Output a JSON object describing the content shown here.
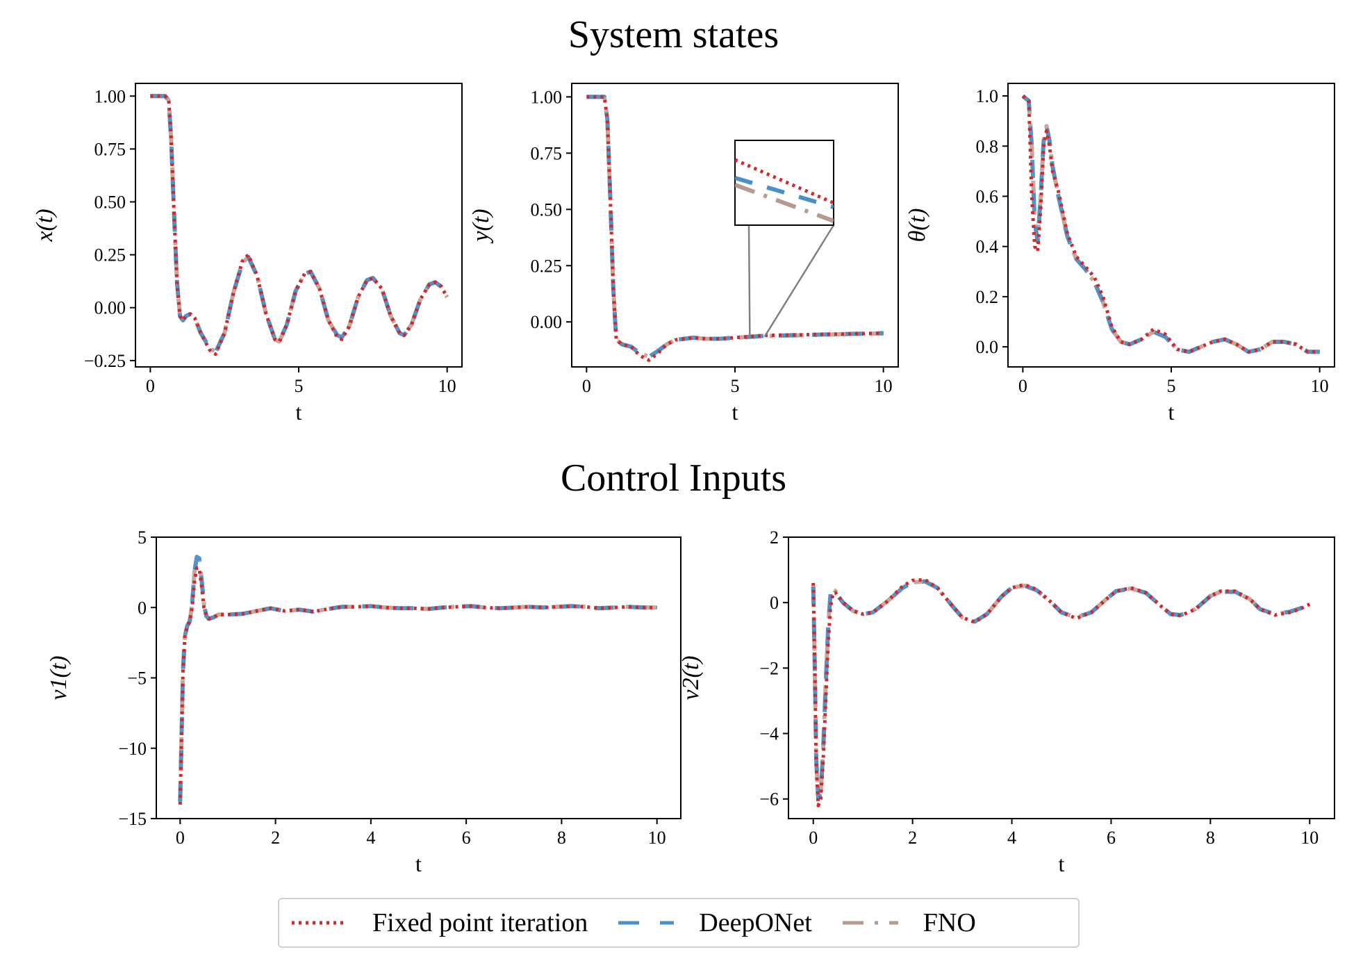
{
  "titles": {
    "top": "System states",
    "bottom": "Control Inputs"
  },
  "colors": {
    "fixed_point": "#d62728",
    "deeponet": "#4a90c8",
    "fno": "#b89890"
  },
  "legend": [
    {
      "label": "Fixed point iteration",
      "style": "dotted",
      "color": "#d62728"
    },
    {
      "label": "DeepONet",
      "style": "dashed",
      "color": "#4a90c8"
    },
    {
      "label": "FNO",
      "style": "dashdot",
      "color": "#b89890"
    }
  ],
  "chart_data": [
    {
      "type": "line",
      "id": "x",
      "xlabel": "t",
      "ylabel": "x(t)",
      "xlim": [
        -0.5,
        10.5
      ],
      "ylim": [
        -0.28,
        1.06
      ],
      "xticks": [
        0,
        5,
        10
      ],
      "yticks": [
        -0.25,
        0.0,
        0.25,
        0.5,
        0.75,
        1.0
      ],
      "yticklabels": [
        "−0.25",
        "0.00",
        "0.25",
        "0.50",
        "0.75",
        "1.00"
      ],
      "x": [
        0,
        0.5,
        0.62,
        0.7,
        0.8,
        0.9,
        1.0,
        1.1,
        1.2,
        1.35,
        1.5,
        1.7,
        2.0,
        2.2,
        2.5,
        2.8,
        3.1,
        3.3,
        3.6,
        3.9,
        4.2,
        4.35,
        4.6,
        4.9,
        5.2,
        5.4,
        5.7,
        6.0,
        6.3,
        6.45,
        6.7,
        7.0,
        7.3,
        7.5,
        7.8,
        8.1,
        8.4,
        8.55,
        8.8,
        9.1,
        9.4,
        9.6,
        9.8,
        10.0
      ],
      "series": [
        {
          "name": "Fixed point iteration",
          "values": [
            1.0,
            1.0,
            0.98,
            0.8,
            0.45,
            0.12,
            -0.04,
            -0.06,
            -0.04,
            -0.03,
            -0.05,
            -0.12,
            -0.2,
            -0.22,
            -0.12,
            0.07,
            0.22,
            0.25,
            0.15,
            -0.03,
            -0.15,
            -0.16,
            -0.08,
            0.08,
            0.16,
            0.17,
            0.09,
            -0.06,
            -0.14,
            -0.15,
            -0.09,
            0.05,
            0.13,
            0.14,
            0.09,
            -0.04,
            -0.12,
            -0.13,
            -0.08,
            0.04,
            0.11,
            0.12,
            0.1,
            0.05
          ]
        },
        {
          "name": "DeepONet",
          "values": [
            1.0,
            1.0,
            0.98,
            0.8,
            0.45,
            0.12,
            -0.04,
            -0.06,
            -0.04,
            -0.03,
            -0.05,
            -0.12,
            -0.19,
            -0.21,
            -0.12,
            0.07,
            0.21,
            0.24,
            0.15,
            -0.03,
            -0.15,
            -0.16,
            -0.08,
            0.08,
            0.16,
            0.17,
            0.09,
            -0.06,
            -0.13,
            -0.14,
            -0.09,
            0.05,
            0.13,
            0.14,
            0.09,
            -0.04,
            -0.12,
            -0.13,
            -0.08,
            0.04,
            0.11,
            0.12,
            0.1,
            0.05
          ]
        },
        {
          "name": "FNO",
          "values": [
            1.0,
            1.0,
            0.98,
            0.8,
            0.45,
            0.12,
            -0.04,
            -0.06,
            -0.04,
            -0.03,
            -0.05,
            -0.12,
            -0.19,
            -0.21,
            -0.12,
            0.07,
            0.21,
            0.24,
            0.15,
            -0.03,
            -0.15,
            -0.16,
            -0.08,
            0.08,
            0.16,
            0.17,
            0.09,
            -0.06,
            -0.13,
            -0.14,
            -0.09,
            0.05,
            0.13,
            0.14,
            0.09,
            -0.04,
            -0.12,
            -0.13,
            -0.08,
            0.04,
            0.11,
            0.12,
            0.1,
            0.05
          ]
        }
      ]
    },
    {
      "type": "line",
      "id": "y",
      "xlabel": "t",
      "ylabel": "y(t)",
      "xlim": [
        -0.5,
        10.5
      ],
      "ylim": [
        -0.2,
        1.06
      ],
      "xticks": [
        0,
        5,
        10
      ],
      "yticks": [
        0.0,
        0.25,
        0.5,
        0.75,
        1.0
      ],
      "yticklabels": [
        "0.00",
        "0.25",
        "0.50",
        "0.75",
        "1.00"
      ],
      "x": [
        0,
        0.6,
        0.7,
        0.8,
        0.9,
        1.0,
        1.2,
        1.5,
        1.8,
        2.1,
        2.4,
        2.7,
        3.0,
        3.3,
        3.6,
        4.0,
        4.5,
        5.0,
        5.5,
        6.0,
        7.0,
        8.0,
        9.0,
        10.0
      ],
      "series": [
        {
          "name": "Fixed point iteration",
          "values": [
            1.0,
            1.0,
            0.9,
            0.55,
            0.15,
            -0.08,
            -0.1,
            -0.11,
            -0.15,
            -0.17,
            -0.14,
            -0.1,
            -0.08,
            -0.075,
            -0.07,
            -0.075,
            -0.075,
            -0.07,
            -0.065,
            -0.06,
            -0.058,
            -0.055,
            -0.053,
            -0.05
          ]
        },
        {
          "name": "DeepONet",
          "values": [
            1.0,
            1.0,
            0.9,
            0.55,
            0.15,
            -0.08,
            -0.1,
            -0.11,
            -0.14,
            -0.155,
            -0.13,
            -0.1,
            -0.08,
            -0.075,
            -0.07,
            -0.075,
            -0.075,
            -0.07,
            -0.066,
            -0.062,
            -0.059,
            -0.056,
            -0.053,
            -0.05
          ]
        },
        {
          "name": "FNO",
          "values": [
            1.0,
            1.0,
            0.9,
            0.55,
            0.15,
            -0.08,
            -0.1,
            -0.11,
            -0.14,
            -0.155,
            -0.13,
            -0.1,
            -0.08,
            -0.075,
            -0.07,
            -0.075,
            -0.075,
            -0.07,
            -0.067,
            -0.063,
            -0.06,
            -0.057,
            -0.054,
            -0.051
          ]
        }
      ]
    },
    {
      "type": "line",
      "id": "theta",
      "xlabel": "t",
      "ylabel": "θ(t)",
      "xlim": [
        -0.5,
        10.5
      ],
      "ylim": [
        -0.08,
        1.05
      ],
      "xticks": [
        0,
        5,
        10
      ],
      "yticks": [
        0.0,
        0.2,
        0.4,
        0.6,
        0.8,
        1.0
      ],
      "yticklabels": [
        "0.0",
        "0.2",
        "0.4",
        "0.6",
        "0.8",
        "1.0"
      ],
      "x": [
        0,
        0.2,
        0.3,
        0.4,
        0.5,
        0.6,
        0.7,
        0.8,
        0.9,
        1.0,
        1.2,
        1.5,
        1.8,
        2.1,
        2.4,
        2.7,
        3.0,
        3.3,
        3.6,
        4.0,
        4.4,
        4.8,
        5.2,
        5.6,
        6.0,
        6.4,
        6.8,
        7.2,
        7.6,
        8.0,
        8.4,
        8.8,
        9.2,
        9.6,
        10.0
      ],
      "series": [
        {
          "name": "Fixed point iteration",
          "values": [
            1.0,
            0.98,
            0.6,
            0.4,
            0.38,
            0.55,
            0.8,
            0.86,
            0.8,
            0.7,
            0.62,
            0.45,
            0.36,
            0.32,
            0.28,
            0.2,
            0.08,
            0.02,
            0.01,
            0.03,
            0.07,
            0.05,
            -0.01,
            -0.02,
            0.0,
            0.02,
            0.03,
            0.01,
            -0.02,
            -0.01,
            0.02,
            0.02,
            0.01,
            -0.02,
            -0.02
          ]
        },
        {
          "name": "DeepONet",
          "values": [
            1.0,
            0.98,
            0.8,
            0.5,
            0.42,
            0.6,
            0.82,
            0.88,
            0.82,
            0.72,
            0.6,
            0.44,
            0.35,
            0.31,
            0.26,
            0.18,
            0.07,
            0.02,
            0.01,
            0.03,
            0.06,
            0.04,
            -0.01,
            -0.02,
            0.0,
            0.02,
            0.03,
            0.01,
            -0.02,
            -0.01,
            0.02,
            0.02,
            0.01,
            -0.02,
            -0.02
          ]
        },
        {
          "name": "FNO",
          "values": [
            1.0,
            0.98,
            0.8,
            0.5,
            0.42,
            0.6,
            0.82,
            0.88,
            0.82,
            0.72,
            0.6,
            0.44,
            0.35,
            0.31,
            0.26,
            0.18,
            0.07,
            0.02,
            0.01,
            0.03,
            0.06,
            0.04,
            -0.01,
            -0.02,
            0.0,
            0.02,
            0.03,
            0.01,
            -0.02,
            -0.01,
            0.02,
            0.02,
            0.01,
            -0.02,
            -0.02
          ]
        }
      ]
    },
    {
      "type": "line",
      "id": "v1",
      "xlabel": "t",
      "ylabel": "ν1(t)",
      "xlim": [
        -0.5,
        10.5
      ],
      "ylim": [
        -15,
        5
      ],
      "xticks": [
        0,
        2,
        4,
        6,
        8,
        10
      ],
      "yticks": [
        -15,
        -10,
        -5,
        0,
        5
      ],
      "yticklabels": [
        "−15",
        "−10",
        "−5",
        "0",
        "5"
      ],
      "x": [
        0,
        0.03,
        0.06,
        0.1,
        0.15,
        0.2,
        0.25,
        0.3,
        0.35,
        0.4,
        0.45,
        0.5,
        0.55,
        0.6,
        0.7,
        0.8,
        1.0,
        1.3,
        1.6,
        1.9,
        2.2,
        2.5,
        2.8,
        3.1,
        3.4,
        3.7,
        4.0,
        4.3,
        4.6,
        4.9,
        5.2,
        5.5,
        5.8,
        6.1,
        6.4,
        6.7,
        7.0,
        7.3,
        7.6,
        7.9,
        8.2,
        8.5,
        8.8,
        9.1,
        9.4,
        9.7,
        10.0
      ],
      "series": [
        {
          "name": "Fixed point iteration",
          "values": [
            -14.0,
            -9.0,
            -4.5,
            -2.0,
            -1.3,
            -1.0,
            0.0,
            1.8,
            2.8,
            2.8,
            1.5,
            0.0,
            -0.6,
            -0.8,
            -0.7,
            -0.5,
            -0.5,
            -0.45,
            -0.25,
            -0.05,
            -0.25,
            -0.15,
            -0.3,
            -0.1,
            0.05,
            0.05,
            0.1,
            0.0,
            -0.05,
            -0.05,
            -0.1,
            0.0,
            0.05,
            0.1,
            0.0,
            -0.05,
            0.0,
            0.05,
            0.0,
            0.05,
            0.1,
            0.05,
            -0.05,
            0.0,
            0.05,
            0.0,
            0.0
          ]
        },
        {
          "name": "DeepONet",
          "values": [
            -13.8,
            -9.0,
            -4.5,
            -2.0,
            -1.3,
            -1.0,
            0.2,
            2.5,
            3.6,
            3.5,
            2.0,
            0.2,
            -0.6,
            -0.8,
            -0.7,
            -0.5,
            -0.5,
            -0.45,
            -0.25,
            -0.05,
            -0.25,
            -0.15,
            -0.3,
            -0.1,
            0.05,
            0.05,
            0.1,
            0.0,
            -0.05,
            -0.05,
            -0.1,
            0.0,
            0.05,
            0.1,
            0.0,
            -0.05,
            0.0,
            0.05,
            0.0,
            0.05,
            0.1,
            0.05,
            -0.05,
            0.0,
            0.05,
            0.0,
            0.0
          ]
        },
        {
          "name": "FNO",
          "values": [
            -13.8,
            -9.0,
            -4.5,
            -2.0,
            -1.3,
            -1.0,
            0.2,
            2.5,
            3.6,
            3.5,
            2.0,
            0.2,
            -0.6,
            -0.8,
            -0.7,
            -0.5,
            -0.5,
            -0.45,
            -0.25,
            -0.05,
            -0.25,
            -0.15,
            -0.3,
            -0.1,
            0.05,
            0.05,
            0.1,
            0.0,
            -0.05,
            -0.05,
            -0.1,
            0.0,
            0.05,
            0.1,
            0.0,
            -0.05,
            0.0,
            0.05,
            0.0,
            0.05,
            0.1,
            0.05,
            -0.05,
            0.0,
            0.05,
            0.0,
            0.0
          ]
        }
      ]
    },
    {
      "type": "line",
      "id": "v2",
      "xlabel": "t",
      "ylabel": "ν2(t)",
      "xlim": [
        -0.5,
        10.5
      ],
      "ylim": [
        -6.6,
        2
      ],
      "xticks": [
        0,
        2,
        4,
        6,
        8,
        10
      ],
      "yticks": [
        -6,
        -4,
        -2,
        0,
        2
      ],
      "yticklabels": [
        "−6",
        "−4",
        "−2",
        "0",
        "2"
      ],
      "x": [
        0,
        0.03,
        0.06,
        0.1,
        0.15,
        0.2,
        0.25,
        0.3,
        0.35,
        0.4,
        0.45,
        0.5,
        0.6,
        0.8,
        1.0,
        1.2,
        1.5,
        1.8,
        2.0,
        2.25,
        2.5,
        2.8,
        3.0,
        3.25,
        3.5,
        3.8,
        4.0,
        4.25,
        4.5,
        4.8,
        5.0,
        5.3,
        5.6,
        5.9,
        6.1,
        6.4,
        6.7,
        7.0,
        7.2,
        7.4,
        7.7,
        8.0,
        8.2,
        8.5,
        8.8,
        9.0,
        9.3,
        9.6,
        9.8,
        10.0
      ],
      "series": [
        {
          "name": "Fixed point iteration",
          "values": [
            0.6,
            -2.0,
            -5.0,
            -6.2,
            -6.0,
            -4.8,
            -3.0,
            -1.2,
            -0.1,
            0.3,
            0.3,
            0.2,
            0.0,
            -0.25,
            -0.35,
            -0.3,
            0.05,
            0.5,
            0.68,
            0.7,
            0.45,
            -0.1,
            -0.45,
            -0.6,
            -0.35,
            0.2,
            0.45,
            0.55,
            0.4,
            0.0,
            -0.3,
            -0.48,
            -0.3,
            0.1,
            0.35,
            0.45,
            0.3,
            -0.1,
            -0.35,
            -0.4,
            -0.2,
            0.2,
            0.35,
            0.35,
            0.1,
            -0.2,
            -0.38,
            -0.3,
            -0.2,
            -0.05
          ]
        },
        {
          "name": "DeepONet",
          "values": [
            0.5,
            -2.0,
            -4.8,
            -6.0,
            -5.8,
            -4.5,
            -2.5,
            -0.7,
            0.3,
            0.4,
            0.35,
            0.2,
            0.0,
            -0.25,
            -0.35,
            -0.3,
            0.05,
            0.45,
            0.62,
            0.65,
            0.45,
            -0.1,
            -0.45,
            -0.58,
            -0.35,
            0.2,
            0.45,
            0.52,
            0.38,
            0.0,
            -0.3,
            -0.45,
            -0.3,
            0.1,
            0.35,
            0.43,
            0.3,
            -0.1,
            -0.35,
            -0.38,
            -0.2,
            0.2,
            0.33,
            0.33,
            0.1,
            -0.2,
            -0.35,
            -0.28,
            -0.18,
            -0.05
          ]
        },
        {
          "name": "FNO",
          "values": [
            0.5,
            -2.0,
            -4.8,
            -6.0,
            -5.8,
            -4.5,
            -2.5,
            -0.7,
            0.3,
            0.4,
            0.35,
            0.2,
            0.0,
            -0.25,
            -0.35,
            -0.3,
            0.05,
            0.45,
            0.62,
            0.65,
            0.45,
            -0.1,
            -0.45,
            -0.58,
            -0.35,
            0.2,
            0.45,
            0.52,
            0.38,
            0.0,
            -0.3,
            -0.45,
            -0.3,
            0.1,
            0.35,
            0.43,
            0.3,
            -0.1,
            -0.35,
            -0.38,
            -0.2,
            0.2,
            0.33,
            0.33,
            0.1,
            -0.2,
            -0.35,
            -0.28,
            -0.18,
            -0.05
          ]
        }
      ]
    }
  ]
}
